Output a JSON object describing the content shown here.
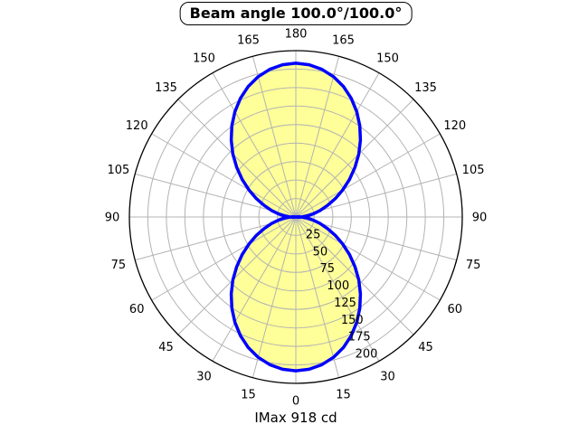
{
  "header": {
    "title": "Beam angle 100.0°/100.0°"
  },
  "footer": {
    "imax_label": "IMax 918 cd"
  },
  "chart_data": {
    "type": "polar",
    "title": "Beam angle 100.0°/100.0°",
    "annotation": "IMax 918 cd",
    "imax_cd": 918,
    "beam_angle_deg": {
      "c0": 100.0,
      "c90": 100.0
    },
    "angle_axis": {
      "ticks_deg": [
        0,
        15,
        30,
        45,
        60,
        75,
        90,
        105,
        120,
        135,
        150,
        165,
        180
      ],
      "grid_step_deg": 15,
      "zero_position": "bottom",
      "mirrored_left_right": true
    },
    "r_axis": {
      "ticks": [
        25,
        50,
        75,
        100,
        125,
        150,
        175,
        200
      ],
      "max": 225,
      "label_ray_deg": 22.5
    },
    "lobes": [
      "down",
      "up"
    ],
    "distribution": {
      "gamma_deg": [
        0,
        5,
        10,
        15,
        20,
        25,
        30,
        35,
        40,
        45,
        50,
        55,
        60,
        65,
        70,
        75,
        80,
        85,
        90,
        95,
        100,
        105,
        107
      ],
      "intensity": [
        208,
        206.7,
        202.8,
        196.5,
        187.9,
        177.2,
        164.7,
        150.8,
        135.9,
        120.3,
        104.3,
        88.5,
        73.1,
        58.8,
        45.6,
        33.9,
        23.8,
        15.4,
        8.1,
        3.6,
        1.0,
        0.1,
        0
      ],
      "symmetric_about_axis": true
    },
    "colors": {
      "fill": "#FFFF99",
      "curve": "#0000FF",
      "grid": "#B3B3B3",
      "axis": "#000000",
      "text": "#000000",
      "background": "#FFFFFF"
    },
    "legend": null
  }
}
